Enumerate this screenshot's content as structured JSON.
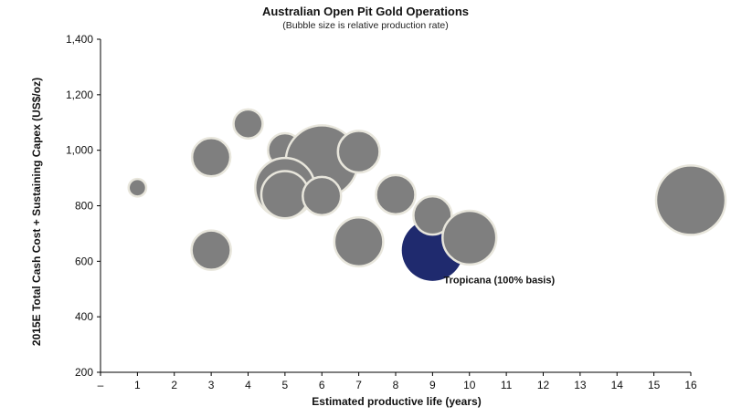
{
  "chart_data": {
    "type": "scatter",
    "title": "Australian Open Pit Gold Operations",
    "subtitle": "(Bubble size is relative production rate)",
    "xlabel": "Estimated productive life (years)",
    "ylabel": "2015E Total Cash Cost + Sustaining Capex  (US$/oz)",
    "xlim": [
      0,
      16
    ],
    "ylim": [
      200,
      1400
    ],
    "x_ticks": [
      {
        "value": 0,
        "label": "–"
      },
      {
        "value": 1,
        "label": "1"
      },
      {
        "value": 2,
        "label": "2"
      },
      {
        "value": 3,
        "label": "3"
      },
      {
        "value": 4,
        "label": "4"
      },
      {
        "value": 5,
        "label": "5"
      },
      {
        "value": 6,
        "label": "6"
      },
      {
        "value": 7,
        "label": "7"
      },
      {
        "value": 8,
        "label": "8"
      },
      {
        "value": 9,
        "label": "9"
      },
      {
        "value": 10,
        "label": "10"
      },
      {
        "value": 11,
        "label": "11"
      },
      {
        "value": 12,
        "label": "12"
      },
      {
        "value": 13,
        "label": "13"
      },
      {
        "value": 14,
        "label": "14"
      },
      {
        "value": 15,
        "label": "15"
      },
      {
        "value": 16,
        "label": "16"
      }
    ],
    "y_ticks": [
      {
        "value": 200,
        "label": "200"
      },
      {
        "value": 400,
        "label": "400"
      },
      {
        "value": 600,
        "label": "600"
      },
      {
        "value": 800,
        "label": "800"
      },
      {
        "value": 1000,
        "label": "1,000"
      },
      {
        "value": 1200,
        "label": "1,200"
      },
      {
        "value": 1400,
        "label": "1,400"
      }
    ],
    "grid": false,
    "colors": {
      "bubble": "#7f7f7f",
      "bubble_edge": "#e8e6dc",
      "highlight": "#1f2a6e",
      "axis": "#000000"
    },
    "points": [
      {
        "x": 1,
        "y": 865,
        "size": 0.08,
        "highlight": false
      },
      {
        "x": 4,
        "y": 1095,
        "size": 0.22,
        "highlight": false
      },
      {
        "x": 3,
        "y": 975,
        "size": 0.38,
        "highlight": false
      },
      {
        "x": 3,
        "y": 640,
        "size": 0.4,
        "highlight": false
      },
      {
        "x": 5,
        "y": 1000,
        "size": 0.3,
        "highlight": false
      },
      {
        "x": 6,
        "y": 960,
        "size": 1.35,
        "highlight": false
      },
      {
        "x": 7,
        "y": 995,
        "size": 0.45,
        "highlight": false
      },
      {
        "x": 5,
        "y": 865,
        "size": 0.92,
        "highlight": false
      },
      {
        "x": 5,
        "y": 840,
        "size": 0.58,
        "highlight": false
      },
      {
        "x": 6,
        "y": 835,
        "size": 0.38,
        "highlight": false
      },
      {
        "x": 8,
        "y": 840,
        "size": 0.4,
        "highlight": false
      },
      {
        "x": 7,
        "y": 670,
        "size": 0.62,
        "highlight": false
      },
      {
        "x": 9,
        "y": 640,
        "size": 0.98,
        "highlight": true
      },
      {
        "x": 9,
        "y": 765,
        "size": 0.38,
        "highlight": false
      },
      {
        "x": 10,
        "y": 685,
        "size": 0.75,
        "highlight": false
      },
      {
        "x": 16,
        "y": 820,
        "size": 1.25,
        "highlight": false
      }
    ],
    "annotations": [
      {
        "text": "Tropicana (100% basis)",
        "x": 9.3,
        "y": 520
      }
    ]
  }
}
